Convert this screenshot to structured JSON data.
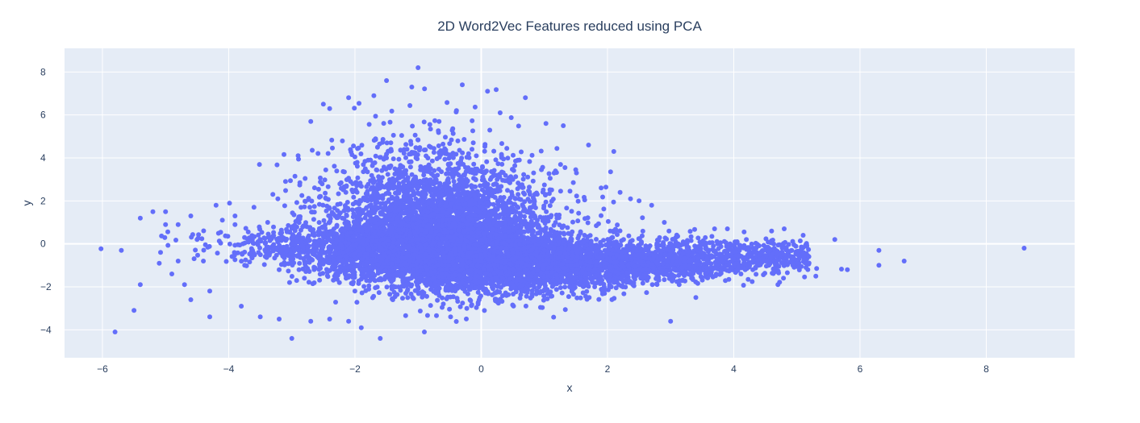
{
  "chart_data": {
    "type": "scatter",
    "title": "2D Word2Vec Features reduced using PCA",
    "xlabel": "x",
    "ylabel": "y",
    "xlim": [
      -6.6,
      9.4
    ],
    "ylim": [
      -5.3,
      9.1
    ],
    "xticks": [
      -6,
      -4,
      -2,
      0,
      2,
      4,
      6,
      8
    ],
    "yticks": [
      -4,
      -2,
      0,
      2,
      4,
      6,
      8
    ],
    "grid": true,
    "legend": "none",
    "colors": {
      "marker": "#636efa",
      "plot_background": "#e5ecf6",
      "grid": "#ffffff",
      "text": "#2a3f5f"
    },
    "series": [
      {
        "marker": "circle",
        "points": [
          [
            -5.8,
            -4.1
          ],
          [
            -5.5,
            -3.1
          ],
          [
            -5.7,
            -0.3
          ],
          [
            -5.4,
            1.2
          ],
          [
            -5.2,
            1.5
          ],
          [
            -5.0,
            1.5
          ],
          [
            -5.0,
            0.9
          ],
          [
            -4.8,
            0.9
          ],
          [
            -4.6,
            1.3
          ],
          [
            -5.4,
            -1.9
          ],
          [
            -5.1,
            -0.9
          ],
          [
            -4.9,
            -1.4
          ],
          [
            -4.8,
            -0.8
          ],
          [
            -4.6,
            -2.6
          ],
          [
            -4.3,
            -3.4
          ],
          [
            -4.2,
            1.8
          ],
          [
            -4.1,
            1.1
          ],
          [
            -3.9,
            0.9
          ],
          [
            -4.5,
            0.2
          ],
          [
            -4.3,
            -2.2
          ],
          [
            -3.8,
            -2.9
          ],
          [
            -3.5,
            -3.4
          ],
          [
            -3.2,
            -3.5
          ],
          [
            -3.0,
            -4.4
          ],
          [
            -2.7,
            -3.6
          ],
          [
            -2.4,
            -3.5
          ],
          [
            -2.1,
            -3.6
          ],
          [
            -1.9,
            -3.9
          ],
          [
            -1.6,
            -4.4
          ],
          [
            -0.9,
            -4.1
          ],
          [
            -1.0,
            8.2
          ],
          [
            -1.5,
            7.6
          ],
          [
            -1.1,
            7.3
          ],
          [
            -0.3,
            7.4
          ],
          [
            0.1,
            7.1
          ],
          [
            -2.1,
            6.8
          ],
          [
            -1.7,
            6.9
          ],
          [
            -2.4,
            6.3
          ],
          [
            0.3,
            6.1
          ],
          [
            0.7,
            6.8
          ],
          [
            1.3,
            5.5
          ],
          [
            1.7,
            4.6
          ],
          [
            2.1,
            4.3
          ],
          [
            3.0,
            -3.6
          ],
          [
            5.8,
            -1.2
          ],
          [
            6.3,
            -0.3
          ],
          [
            6.3,
            -1.0
          ],
          [
            6.7,
            -0.8
          ],
          [
            8.6,
            -0.2
          ],
          [
            5.6,
            0.2
          ],
          [
            5.1,
            0.4
          ],
          [
            4.8,
            0.7
          ],
          [
            4.6,
            0.6
          ],
          [
            4.2,
            0.2
          ],
          [
            3.9,
            0.7
          ],
          [
            2.9,
            1.0
          ],
          [
            2.7,
            1.8
          ],
          [
            2.5,
            2.0
          ],
          [
            2.2,
            2.4
          ],
          [
            1.9,
            2.6
          ],
          [
            -2.9,
            4.1
          ],
          [
            -2.7,
            5.7
          ],
          [
            -2.5,
            6.5
          ],
          [
            -3.1,
            2.9
          ],
          [
            -3.3,
            2.3
          ],
          [
            -3.6,
            1.7
          ],
          [
            -3.9,
            1.3
          ],
          [
            -4.4,
            -0.8
          ],
          [
            -4.7,
            -1.9
          ],
          [
            -3.4,
            -0.5
          ],
          [
            -3.0,
            -0.7
          ],
          [
            -2.5,
            -0.9
          ],
          [
            -2.0,
            -1.0
          ],
          [
            -1.5,
            -0.8
          ],
          [
            -1.0,
            -0.6
          ],
          [
            -0.5,
            -0.5
          ],
          [
            0.0,
            -0.5
          ],
          [
            0.5,
            -0.4
          ],
          [
            1.0,
            -0.3
          ],
          [
            1.5,
            -0.3
          ],
          [
            2.0,
            -0.4
          ],
          [
            2.5,
            -0.5
          ],
          [
            3.0,
            -0.5
          ],
          [
            3.5,
            -0.6
          ],
          [
            4.0,
            -0.7
          ],
          [
            4.5,
            -0.8
          ],
          [
            5.0,
            -0.9
          ],
          [
            -1.2,
            3.0
          ],
          [
            -0.8,
            3.5
          ],
          [
            -0.5,
            2.5
          ],
          [
            -1.5,
            4.0
          ],
          [
            -0.2,
            4.2
          ],
          [
            0.5,
            3.0
          ],
          [
            -1.8,
            2.0
          ],
          [
            -2.2,
            1.2
          ],
          [
            -0.6,
            1.5
          ],
          [
            0.2,
            1.0
          ],
          [
            1.2,
            1.2
          ],
          [
            -1.0,
            -2.0
          ],
          [
            -2.0,
            -2.2
          ],
          [
            -0.3,
            -1.8
          ],
          [
            0.8,
            -1.5
          ],
          [
            1.8,
            -1.2
          ],
          [
            2.8,
            -1.3
          ],
          [
            3.8,
            -1.1
          ],
          [
            -2.8,
            -1.6
          ],
          [
            -3.2,
            -1.2
          ],
          [
            -1.4,
            -2.6
          ],
          [
            -0.6,
            -2.8
          ],
          [
            0.4,
            -2.4
          ],
          [
            1.4,
            -2.0
          ],
          [
            2.4,
            -1.9
          ],
          [
            3.4,
            -2.5
          ],
          [
            4.7,
            -1.9
          ],
          [
            5.3,
            -1.5
          ]
        ]
      }
    ]
  }
}
